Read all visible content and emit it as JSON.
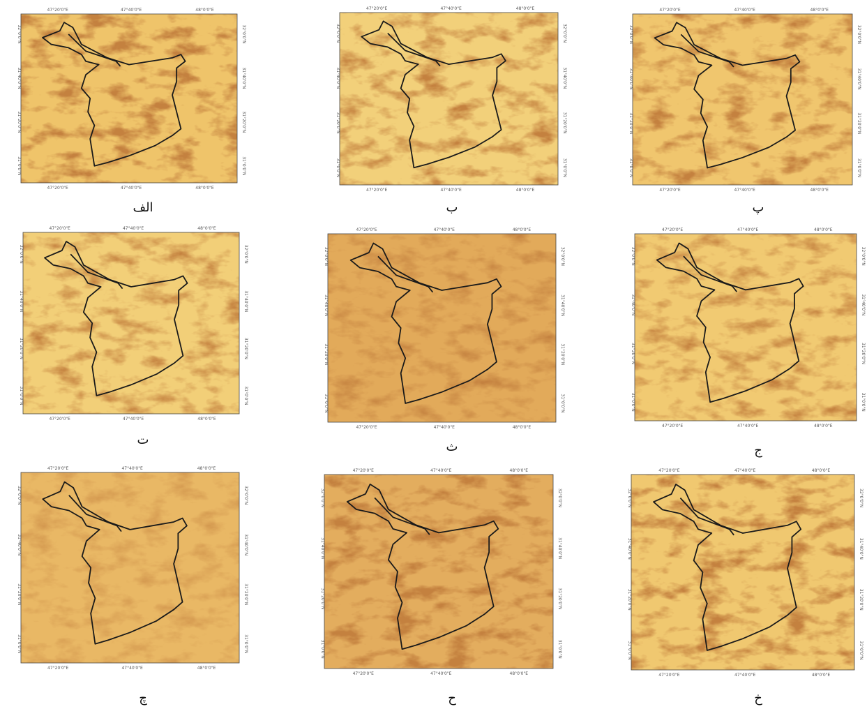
{
  "panels": [
    {
      "label": "الف"
    },
    {
      "label": "ب"
    },
    {
      "label": "پ"
    },
    {
      "label": "ت"
    },
    {
      "label": "ث"
    },
    {
      "label": "ج"
    },
    {
      "label": "چ"
    },
    {
      "label": "ح"
    },
    {
      "label": "خ"
    }
  ],
  "lon_ticks": [
    "47°20'0\"E",
    "47°40'0\"E",
    "48°0'0\"E"
  ],
  "lat_ticks": [
    "31°0'0\"N",
    "31°20'0\"N",
    "31°40'0\"N",
    "32°0'0\"N"
  ]
}
